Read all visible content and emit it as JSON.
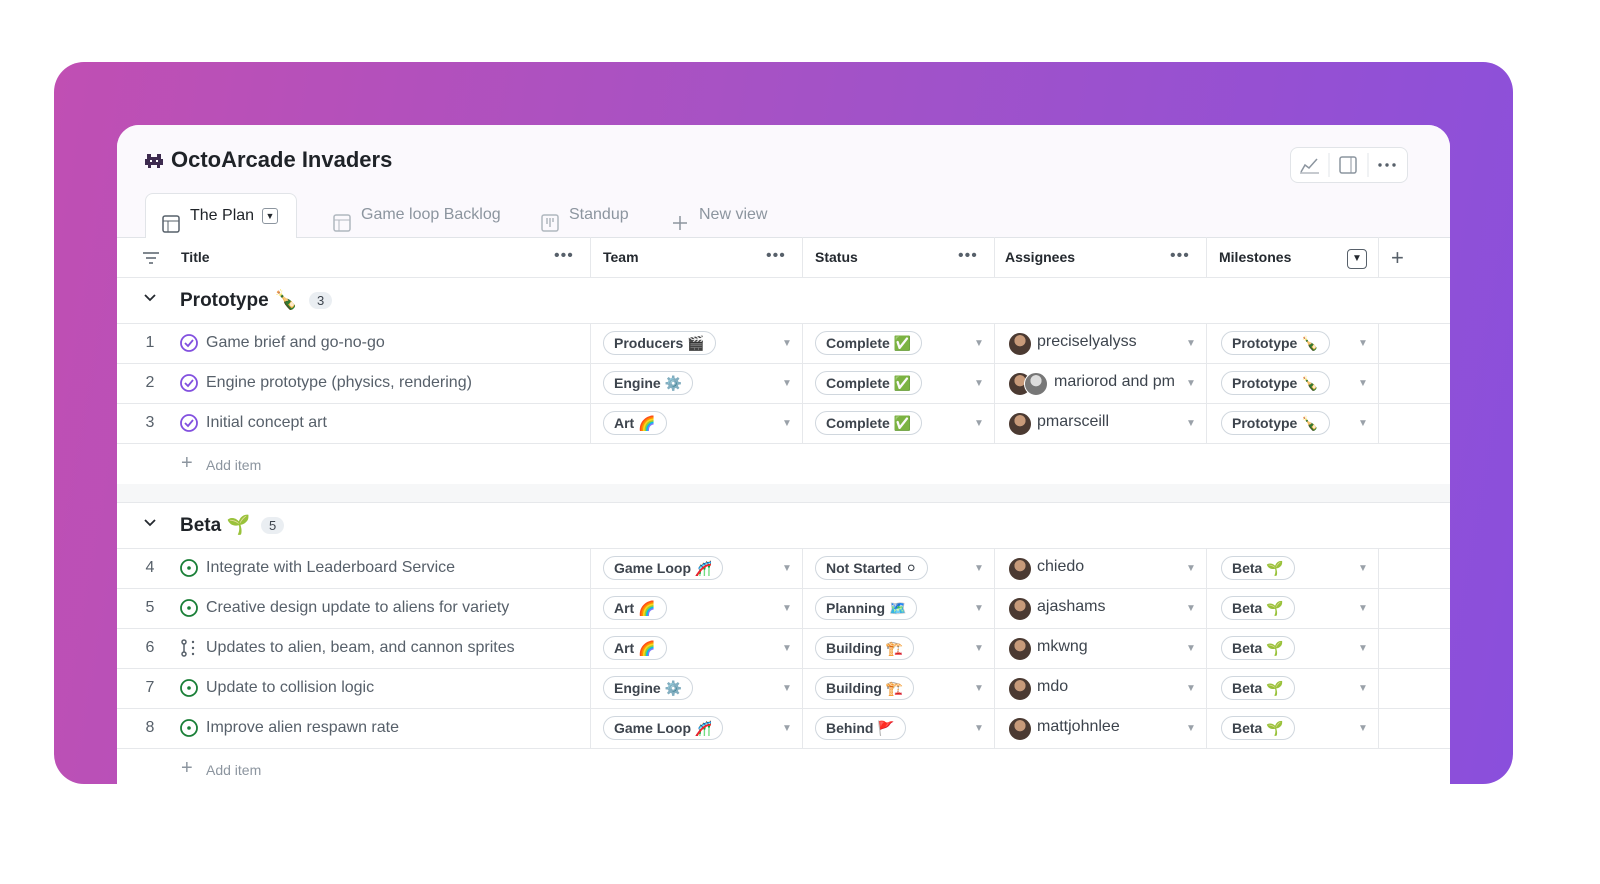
{
  "header": {
    "title": "OctoArcade Invaders"
  },
  "tabs": [
    "The Plan",
    "Game loop Backlog",
    "Standup",
    "New view"
  ],
  "columns": [
    "Title",
    "Team",
    "Status",
    "Assignees",
    "Milestones"
  ],
  "groups": [
    {
      "name": "Prototype 🍾",
      "count": 3,
      "add_item": "Add item",
      "rows": [
        {
          "number": 1,
          "icon": "done",
          "title": "Game brief and go-no-go",
          "team": "Producers 🎬",
          "status": "Complete ✅",
          "assignees": "preciselyalyss",
          "milestone": "Prototype 🍾"
        },
        {
          "number": 2,
          "icon": "done",
          "title": "Engine prototype (physics, rendering)",
          "team": "Engine ⚙️",
          "status": "Complete ✅",
          "assignees": "mariorod and pm",
          "milestone": "Prototype 🍾"
        },
        {
          "number": 3,
          "icon": "done",
          "title": "Initial concept art",
          "team": "Art 🌈",
          "status": "Complete ✅",
          "assignees": "pmarsceill",
          "milestone": "Prototype 🍾"
        }
      ]
    },
    {
      "name": "Beta 🌱",
      "count": 5,
      "add_item": "Add item",
      "rows": [
        {
          "number": 4,
          "icon": "open",
          "title": "Integrate with Leaderboard Service",
          "team": "Game Loop 🎢",
          "status": "Not Started ⚪",
          "assignees": "chiedo",
          "milestone": "Beta 🌱"
        },
        {
          "number": 5,
          "icon": "open",
          "title": "Creative design update to aliens for variety",
          "team": "Art 🌈",
          "status": "Planning 🗺️",
          "assignees": "ajashams",
          "milestone": "Beta 🌱"
        },
        {
          "number": 6,
          "icon": "draft",
          "title": "Updates to alien, beam, and cannon sprites",
          "team": "Art 🌈",
          "status": "Building 🏗️",
          "assignees": "mkwng",
          "milestone": "Beta 🌱"
        },
        {
          "number": 7,
          "icon": "open",
          "title": "Update to collision logic",
          "team": "Engine ⚙️",
          "status": "Building 🏗️",
          "assignees": "mdo",
          "milestone": "Beta 🌱"
        },
        {
          "number": 8,
          "icon": "open",
          "title": "Improve alien respawn rate",
          "team": "Game Loop 🎢",
          "status": "Behind 🚩",
          "assignees": "mattjohnlee",
          "milestone": "Beta 🌱"
        }
      ]
    }
  ]
}
